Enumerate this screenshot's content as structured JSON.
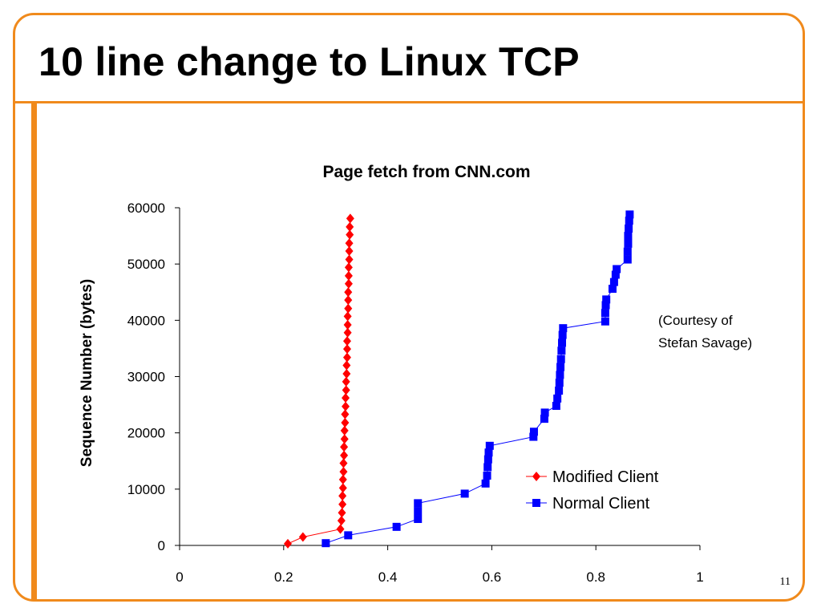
{
  "slide": {
    "title": "10 line change to Linux TCP",
    "page_number": "11",
    "courtesy_line1": "(Courtesy of",
    "courtesy_line2": "Stefan Savage)"
  },
  "colors": {
    "accent": "#f08a1c",
    "modified": "#ff0000",
    "normal": "#0000ff"
  },
  "chart_data": {
    "type": "scatter",
    "title": "Page fetch from CNN.com",
    "xlabel": "",
    "ylabel": "Sequence  Number  (bytes)",
    "xlim": [
      0,
      1
    ],
    "ylim": [
      0,
      60000
    ],
    "x_ticks": [
      0,
      0.2,
      0.4,
      0.6,
      0.8,
      1
    ],
    "x_tick_labels": [
      "0",
      "0.2",
      "0.4",
      "0.6",
      "0.8",
      "1"
    ],
    "y_ticks": [
      0,
      10000,
      20000,
      30000,
      40000,
      50000,
      60000
    ],
    "y_tick_labels": [
      "0",
      "10000",
      "20000",
      "30000",
      "40000",
      "50000",
      "60000"
    ],
    "grid": false,
    "legend": "right",
    "series": [
      {
        "name": "Modified Client",
        "marker": "diamond",
        "color": "#ff0000",
        "points": [
          [
            0.208,
            300
          ],
          [
            0.237,
            1500
          ],
          [
            0.309,
            2900
          ],
          [
            0.311,
            4400
          ],
          [
            0.312,
            5800
          ],
          [
            0.313,
            7300
          ],
          [
            0.313,
            8800
          ],
          [
            0.314,
            10200
          ],
          [
            0.314,
            11700
          ],
          [
            0.315,
            13100
          ],
          [
            0.315,
            14600
          ],
          [
            0.316,
            16000
          ],
          [
            0.316,
            17500
          ],
          [
            0.317,
            18900
          ],
          [
            0.317,
            20400
          ],
          [
            0.318,
            21800
          ],
          [
            0.318,
            23300
          ],
          [
            0.319,
            24700
          ],
          [
            0.319,
            26200
          ],
          [
            0.32,
            27600
          ],
          [
            0.32,
            29100
          ],
          [
            0.321,
            30500
          ],
          [
            0.321,
            32000
          ],
          [
            0.322,
            33400
          ],
          [
            0.322,
            34900
          ],
          [
            0.322,
            36300
          ],
          [
            0.323,
            37800
          ],
          [
            0.323,
            39200
          ],
          [
            0.323,
            40700
          ],
          [
            0.324,
            42100
          ],
          [
            0.324,
            43600
          ],
          [
            0.324,
            45000
          ],
          [
            0.325,
            46500
          ],
          [
            0.325,
            47900
          ],
          [
            0.325,
            49400
          ],
          [
            0.326,
            50800
          ],
          [
            0.326,
            52300
          ],
          [
            0.326,
            53700
          ],
          [
            0.327,
            55200
          ],
          [
            0.327,
            56600
          ],
          [
            0.328,
            58100
          ]
        ]
      },
      {
        "name": "Normal Client",
        "marker": "square",
        "color": "#0000ff",
        "points": [
          [
            0.281,
            400
          ],
          [
            0.324,
            1800
          ],
          [
            0.417,
            3300
          ],
          [
            0.458,
            4700
          ],
          [
            0.458,
            6100
          ],
          [
            0.458,
            7500
          ],
          [
            0.548,
            9200
          ],
          [
            0.588,
            11000
          ],
          [
            0.591,
            12400
          ],
          [
            0.592,
            13900
          ],
          [
            0.593,
            15300
          ],
          [
            0.594,
            16500
          ],
          [
            0.596,
            17700
          ],
          [
            0.68,
            19300
          ],
          [
            0.681,
            20200
          ],
          [
            0.701,
            22500
          ],
          [
            0.702,
            23600
          ],
          [
            0.724,
            24800
          ],
          [
            0.726,
            26100
          ],
          [
            0.729,
            27500
          ],
          [
            0.73,
            28900
          ],
          [
            0.731,
            30300
          ],
          [
            0.732,
            31700
          ],
          [
            0.733,
            33100
          ],
          [
            0.734,
            34600
          ],
          [
            0.735,
            36000
          ],
          [
            0.736,
            37400
          ],
          [
            0.737,
            38600
          ],
          [
            0.818,
            39800
          ],
          [
            0.818,
            41300
          ],
          [
            0.819,
            42700
          ],
          [
            0.82,
            43700
          ],
          [
            0.832,
            45600
          ],
          [
            0.835,
            46800
          ],
          [
            0.838,
            48100
          ],
          [
            0.84,
            49100
          ],
          [
            0.861,
            50800
          ],
          [
            0.861,
            52200
          ],
          [
            0.862,
            53600
          ],
          [
            0.862,
            55000
          ],
          [
            0.863,
            56300
          ],
          [
            0.864,
            57700
          ],
          [
            0.865,
            58800
          ]
        ]
      }
    ]
  }
}
